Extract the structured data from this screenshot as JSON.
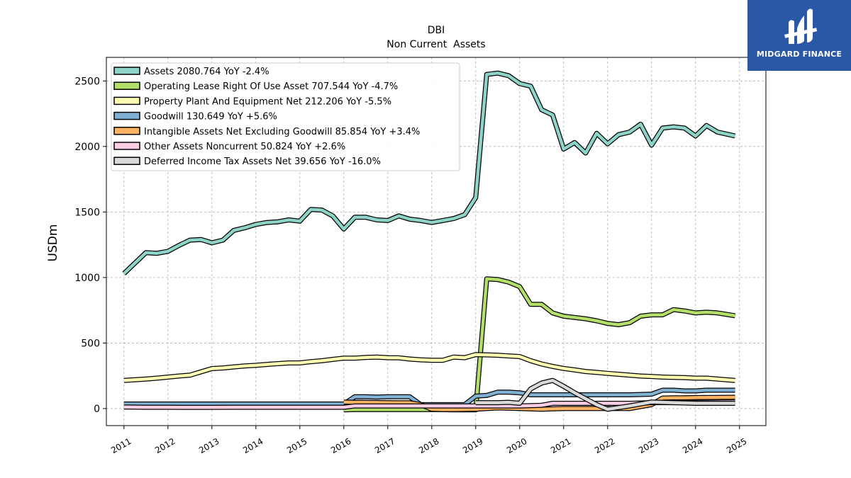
{
  "brand": {
    "name": "MIDGARD FINANCE",
    "bg": "#2b57a7"
  },
  "chart_data": {
    "type": "line",
    "title": "DBI",
    "subtitle": "Non Current  Assets",
    "ylabel": "USDm",
    "xlabel": "",
    "xlim": [
      2010.6,
      2025.6
    ],
    "ylim": [
      -130,
      2680
    ],
    "x_ticks": [
      2011,
      2012,
      2013,
      2014,
      2015,
      2016,
      2017,
      2018,
      2019,
      2020,
      2021,
      2022,
      2023,
      2024,
      2025
    ],
    "y_ticks": [
      0,
      500,
      1000,
      1500,
      2000,
      2500
    ],
    "grid": true,
    "legend_position": "top-left",
    "series": [
      {
        "name": "Assets  2080.764 YoY -2.4%",
        "color": "#8dd3c7",
        "x": [
          2011.0,
          2011.25,
          2011.5,
          2011.75,
          2012.0,
          2012.25,
          2012.5,
          2012.75,
          2013.0,
          2013.25,
          2013.5,
          2013.75,
          2014.0,
          2014.25,
          2014.5,
          2014.75,
          2015.0,
          2015.25,
          2015.5,
          2015.75,
          2016.0,
          2016.25,
          2016.5,
          2016.75,
          2017.0,
          2017.25,
          2017.5,
          2017.75,
          2018.0,
          2018.25,
          2018.5,
          2018.75,
          2019.0,
          2019.25,
          2019.5,
          2019.75,
          2020.0,
          2020.25,
          2020.5,
          2020.75,
          2021.0,
          2021.25,
          2021.5,
          2021.75,
          2022.0,
          2022.25,
          2022.5,
          2022.75,
          2023.0,
          2023.25,
          2023.5,
          2023.75,
          2024.0,
          2024.25,
          2024.5,
          2024.9
        ],
        "y": [
          1030,
          1110,
          1190,
          1185,
          1200,
          1245,
          1285,
          1290,
          1265,
          1285,
          1360,
          1380,
          1405,
          1420,
          1425,
          1440,
          1430,
          1520,
          1515,
          1470,
          1370,
          1460,
          1460,
          1440,
          1435,
          1470,
          1445,
          1435,
          1420,
          1435,
          1450,
          1480,
          1610,
          2550,
          2560,
          2540,
          2480,
          2460,
          2280,
          2240,
          1980,
          2030,
          1950,
          2100,
          2020,
          2090,
          2110,
          2170,
          2010,
          2140,
          2150,
          2140,
          2080,
          2160,
          2110,
          2080
        ]
      },
      {
        "name": "Operating Lease Right Of Use Asset  707.544 YoY -4.7%",
        "color": "#b3de69",
        "x": [
          2016.0,
          2016.25,
          2016.5,
          2016.75,
          2017.0,
          2017.25,
          2017.5,
          2017.75,
          2018.0,
          2018.25,
          2018.5,
          2018.75,
          2019.0,
          2019.25,
          2019.5,
          2019.75,
          2020.0,
          2020.25,
          2020.5,
          2020.75,
          2021.0,
          2021.25,
          2021.5,
          2021.75,
          2022.0,
          2022.25,
          2022.5,
          2022.75,
          2023.0,
          2023.25,
          2023.5,
          2023.75,
          2024.0,
          2024.25,
          2024.5,
          2024.9
        ],
        "y": [
          -10,
          -8,
          -8,
          -8,
          -8,
          -8,
          -8,
          -8,
          -8,
          -8,
          -10,
          -10,
          -10,
          990,
          985,
          965,
          930,
          795,
          795,
          730,
          705,
          695,
          685,
          670,
          650,
          640,
          655,
          705,
          715,
          715,
          755,
          745,
          730,
          735,
          730,
          708
        ]
      },
      {
        "name": "Property Plant And Equipment Net  212.206 YoY -5.5%",
        "color": "#ffffb3",
        "x": [
          2011.0,
          2011.25,
          2011.5,
          2011.75,
          2012.0,
          2012.25,
          2012.5,
          2012.75,
          2013.0,
          2013.25,
          2013.5,
          2013.75,
          2014.0,
          2014.25,
          2014.5,
          2014.75,
          2015.0,
          2015.25,
          2015.5,
          2015.75,
          2016.0,
          2016.25,
          2016.5,
          2016.75,
          2017.0,
          2017.25,
          2017.5,
          2017.75,
          2018.0,
          2018.25,
          2018.5,
          2018.75,
          2019.0,
          2019.25,
          2019.5,
          2019.75,
          2020.0,
          2020.25,
          2020.5,
          2020.75,
          2021.0,
          2021.25,
          2021.5,
          2021.75,
          2022.0,
          2022.25,
          2022.5,
          2022.75,
          2023.0,
          2023.25,
          2023.5,
          2023.75,
          2024.0,
          2024.25,
          2024.5,
          2024.9
        ],
        "y": [
          215,
          220,
          225,
          232,
          240,
          248,
          255,
          280,
          305,
          310,
          318,
          325,
          330,
          337,
          343,
          348,
          348,
          358,
          365,
          375,
          385,
          385,
          390,
          393,
          388,
          387,
          378,
          372,
          368,
          368,
          393,
          388,
          412,
          410,
          407,
          402,
          397,
          365,
          340,
          322,
          306,
          295,
          283,
          276,
          268,
          262,
          255,
          248,
          245,
          240,
          238,
          236,
          232,
          232,
          225,
          215
        ]
      },
      {
        "name": "Goodwill  130.649 YoY +5.6%",
        "color": "#80b1d3",
        "x": [
          2011.0,
          2011.5,
          2012.0,
          2012.5,
          2013.0,
          2013.5,
          2014.0,
          2014.5,
          2015.0,
          2015.5,
          2016.0,
          2016.25,
          2016.5,
          2016.75,
          2017.0,
          2017.25,
          2017.5,
          2017.75,
          2018.0,
          2018.25,
          2018.5,
          2018.75,
          2019.0,
          2019.25,
          2019.5,
          2019.75,
          2020.0,
          2020.25,
          2020.5,
          2020.75,
          2021.0,
          2021.5,
          2022.0,
          2022.5,
          2023.0,
          2023.25,
          2023.5,
          2023.75,
          2024.0,
          2024.25,
          2024.5,
          2024.9
        ],
        "y": [
          35,
          35,
          35,
          35,
          35,
          35,
          35,
          35,
          35,
          35,
          35,
          90,
          90,
          88,
          90,
          90,
          90,
          30,
          30,
          30,
          30,
          30,
          95,
          100,
          125,
          125,
          120,
          105,
          105,
          105,
          105,
          105,
          105,
          105,
          110,
          140,
          140,
          135,
          135,
          140,
          140,
          140
        ]
      },
      {
        "name": "Intangible Assets Net Excluding Goodwill  85.854 YoY +3.4%",
        "color": "#fdb462",
        "x": [
          2016.0,
          2016.25,
          2016.5,
          2016.75,
          2017.0,
          2017.25,
          2017.5,
          2017.75,
          2018.0,
          2018.25,
          2018.5,
          2018.75,
          2019.0,
          2019.25,
          2019.5,
          2019.75,
          2020.0,
          2020.5,
          2021.0,
          2021.5,
          2022.0,
          2022.5,
          2023.0,
          2023.25,
          2023.5,
          2023.75,
          2024.0,
          2024.5,
          2024.9
        ],
        "y": [
          50,
          48,
          47,
          46,
          45,
          44,
          44,
          30,
          -5,
          -8,
          -8,
          -6,
          -5,
          0,
          5,
          3,
          0,
          -5,
          0,
          0,
          0,
          0,
          30,
          80,
          82,
          82,
          84,
          85,
          86
        ]
      },
      {
        "name": "Other Assets Noncurrent  50.824 YoY +2.6%",
        "color": "#fccde5",
        "x": [
          2011.0,
          2011.5,
          2012.0,
          2012.5,
          2013.0,
          2013.5,
          2014.0,
          2014.5,
          2015.0,
          2015.5,
          2016.0,
          2016.25,
          2016.5,
          2016.75,
          2017.0,
          2017.5,
          2018.0,
          2018.5,
          2019.0,
          2019.5,
          2020.0,
          2020.5,
          2020.75,
          2021.0,
          2021.5,
          2022.0,
          2022.5,
          2023.0,
          2023.5,
          2024.0,
          2024.5,
          2024.9
        ],
        "y": [
          12,
          10,
          10,
          9,
          9,
          10,
          10,
          10,
          10,
          10,
          10,
          20,
          20,
          20,
          20,
          20,
          20,
          20,
          20,
          20,
          20,
          25,
          40,
          40,
          40,
          40,
          40,
          45,
          45,
          48,
          50,
          51
        ]
      },
      {
        "name": "Deferred Income Tax Assets Net  39.656 YoY -16.0%",
        "color": "#d9d9d9",
        "x": [
          2019.0,
          2019.25,
          2019.5,
          2019.75,
          2020.0,
          2020.25,
          2020.5,
          2020.75,
          2021.0,
          2021.25,
          2021.5,
          2021.75,
          2022.0,
          2022.5,
          2023.0,
          2023.5,
          2024.0,
          2024.5,
          2024.9
        ],
        "y": [
          45,
          45,
          45,
          48,
          40,
          150,
          195,
          215,
          170,
          120,
          75,
          30,
          -5,
          20,
          50,
          45,
          40,
          40,
          40
        ]
      }
    ]
  }
}
